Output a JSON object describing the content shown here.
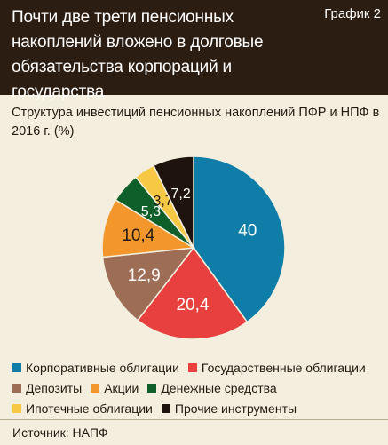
{
  "header": {
    "title": "Почти две трети пенсионных накоплений вложено в долговые обязательства корпораций и государства",
    "chart_label": "График 2"
  },
  "subtitle": "Структура инвестиций пенсионных накоплений ПФР и НПФ в 2016 г. (%)",
  "chart_data": {
    "type": "pie",
    "title": "Структура инвестиций пенсионных накоплений ПФР и НПФ в 2016 г. (%)",
    "categories": [
      "Корпоративные облигации",
      "Государственные облигации",
      "Депозиты",
      "Акции",
      "Денежные средства",
      "Ипотечные облигации",
      "Прочие инструменты"
    ],
    "values": [
      40,
      20.4,
      12.9,
      10.4,
      5.3,
      3.7,
      7.2
    ],
    "value_labels": [
      "40",
      "20,4",
      "12,9",
      "10,4",
      "5,3",
      "3,7",
      "7,2"
    ],
    "colors": [
      "#0e7ea8",
      "#e8403f",
      "#9e6d55",
      "#f3972d",
      "#0f5f2b",
      "#f7c844",
      "#1f140d"
    ],
    "label_colors": [
      "#ffffff",
      "#ffffff",
      "#ffffff",
      "#231a12",
      "#ffffff",
      "#231a12",
      "#ffffff"
    ],
    "legend_position": "bottom"
  },
  "legend": {
    "rows": [
      [
        0,
        1
      ],
      [
        2,
        3,
        4
      ],
      [
        5,
        6
      ]
    ]
  },
  "footer": {
    "source": "Источник: НАПФ"
  }
}
